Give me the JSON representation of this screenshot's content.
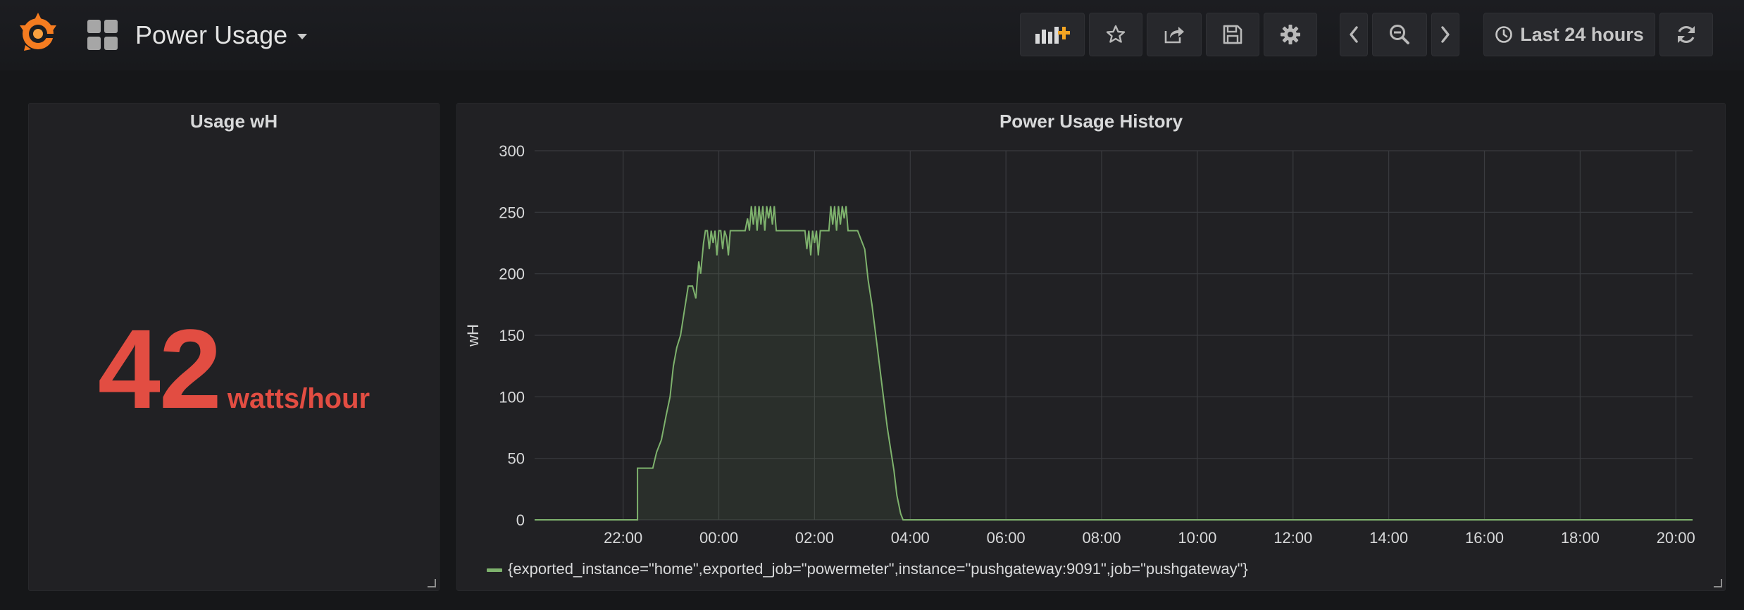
{
  "dashboard": {
    "title": "Power Usage"
  },
  "toolbar": {
    "buttons": [
      {
        "icon": "add-panel-icon"
      },
      {
        "icon": "star-icon"
      },
      {
        "icon": "share-icon"
      },
      {
        "icon": "save-icon"
      },
      {
        "icon": "gear-icon"
      },
      {
        "icon": "chevron-left-icon"
      },
      {
        "icon": "zoom-out-icon"
      },
      {
        "icon": "chevron-right-icon"
      },
      {
        "icon": "clock-icon"
      },
      {
        "icon": "refresh-icon"
      }
    ],
    "time_range": "Last 24 hours"
  },
  "stat_panel": {
    "title": "Usage wH",
    "value": "42",
    "unit": "watts/hour",
    "color": "#e24d42"
  },
  "graph_panel": {
    "title": "Power Usage History",
    "legend": "{exported_instance=\"home\",exported_job=\"powermeter\",instance=\"pushgateway:9091\",job=\"pushgateway\"}"
  },
  "chart_data": {
    "type": "area",
    "title": "Power Usage History",
    "ylabel": "wH",
    "xlabel": "",
    "ylim": [
      0,
      300
    ],
    "xlim_hours": [
      -1.85,
      22.35
    ],
    "yticks": [
      "0",
      "50",
      "100",
      "150",
      "200",
      "250",
      "300"
    ],
    "xticks": [
      {
        "label": "22:00",
        "hour": 0
      },
      {
        "label": "00:00",
        "hour": 2
      },
      {
        "label": "02:00",
        "hour": 4
      },
      {
        "label": "04:00",
        "hour": 6
      },
      {
        "label": "06:00",
        "hour": 8
      },
      {
        "label": "08:00",
        "hour": 10
      },
      {
        "label": "10:00",
        "hour": 12
      },
      {
        "label": "12:00",
        "hour": 14
      },
      {
        "label": "14:00",
        "hour": 16
      },
      {
        "label": "16:00",
        "hour": 18
      },
      {
        "label": "18:00",
        "hour": 20
      },
      {
        "label": "20:00",
        "hour": 22
      }
    ],
    "grid": true,
    "legend_position": "bottom-left",
    "series": [
      {
        "name": "{exported_instance=\"home\",exported_job=\"powermeter\",instance=\"pushgateway:9091\",job=\"pushgateway\"}",
        "color": "#7eb26d",
        "hours": [
          -1.85,
          0.3,
          0.3,
          0.62,
          0.7,
          0.8,
          0.9,
          0.98,
          1.05,
          1.12,
          1.2,
          1.28,
          1.36,
          1.45,
          1.52,
          1.58,
          1.62,
          1.68,
          1.72,
          1.76,
          1.8,
          1.84,
          1.88,
          1.92,
          1.96,
          2.0,
          2.04,
          2.08,
          2.12,
          2.16,
          2.2,
          2.24,
          2.3,
          2.55,
          2.6,
          2.64,
          2.68,
          2.72,
          2.76,
          2.8,
          2.84,
          2.88,
          2.92,
          2.96,
          3.0,
          3.04,
          3.08,
          3.12,
          3.16,
          3.2,
          3.8,
          3.84,
          3.88,
          3.92,
          3.96,
          4.0,
          4.04,
          4.08,
          4.12,
          4.16,
          4.3,
          4.34,
          4.38,
          4.42,
          4.46,
          4.5,
          4.54,
          4.58,
          4.62,
          4.66,
          4.7,
          4.74,
          4.78,
          4.82,
          4.86,
          4.9,
          5.05,
          5.12,
          5.2,
          5.28,
          5.36,
          5.44,
          5.52,
          5.6,
          5.66,
          5.72,
          5.8,
          5.85,
          5.85,
          22.35
        ],
        "values": [
          0,
          0,
          42,
          42,
          55,
          65,
          85,
          100,
          125,
          140,
          150,
          170,
          190,
          190,
          180,
          210,
          200,
          225,
          235,
          235,
          220,
          235,
          225,
          235,
          215,
          235,
          235,
          220,
          235,
          230,
          215,
          235,
          235,
          235,
          245,
          235,
          255,
          240,
          255,
          235,
          255,
          240,
          255,
          235,
          255,
          245,
          255,
          240,
          255,
          235,
          235,
          220,
          235,
          215,
          235,
          225,
          235,
          215,
          235,
          235,
          235,
          255,
          240,
          255,
          235,
          255,
          240,
          255,
          245,
          255,
          235,
          235,
          235,
          235,
          235,
          235,
          220,
          195,
          175,
          150,
          125,
          100,
          75,
          55,
          40,
          20,
          5,
          0,
          0,
          0
        ]
      }
    ]
  }
}
